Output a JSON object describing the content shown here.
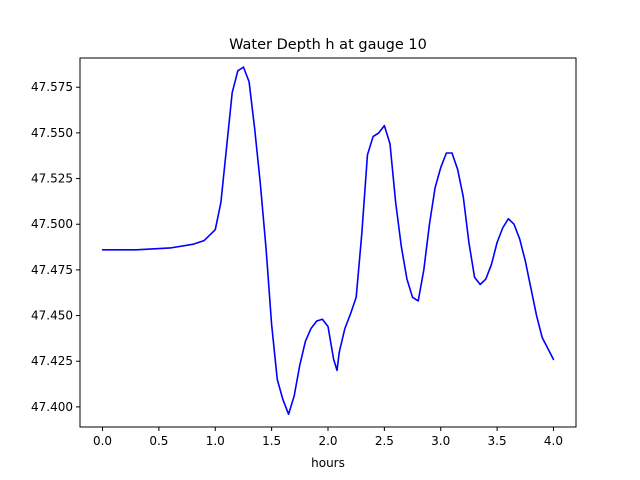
{
  "chart_data": {
    "type": "line",
    "title": "Water Depth h at gauge 10",
    "xlabel": "hours",
    "ylabel": "",
    "xlim": [
      -0.2,
      4.2
    ],
    "ylim": [
      47.389,
      47.591
    ],
    "grid": false,
    "legend": "none",
    "xticks": [
      {
        "value": 0.0,
        "label": "0.0"
      },
      {
        "value": 0.5,
        "label": "0.5"
      },
      {
        "value": 1.0,
        "label": "1.0"
      },
      {
        "value": 1.5,
        "label": "1.5"
      },
      {
        "value": 2.0,
        "label": "2.0"
      },
      {
        "value": 2.5,
        "label": "2.5"
      },
      {
        "value": 3.0,
        "label": "3.0"
      },
      {
        "value": 3.5,
        "label": "3.5"
      },
      {
        "value": 4.0,
        "label": "4.0"
      }
    ],
    "yticks": [
      {
        "value": 47.4,
        "label": "47.400"
      },
      {
        "value": 47.425,
        "label": "47.425"
      },
      {
        "value": 47.45,
        "label": "47.450"
      },
      {
        "value": 47.475,
        "label": "47.475"
      },
      {
        "value": 47.5,
        "label": "47.500"
      },
      {
        "value": 47.525,
        "label": "47.525"
      },
      {
        "value": 47.55,
        "label": "47.550"
      },
      {
        "value": 47.575,
        "label": "47.575"
      }
    ],
    "series": [
      {
        "color": "#0000ff",
        "x": [
          0.0,
          0.3,
          0.6,
          0.8,
          0.9,
          1.0,
          1.05,
          1.1,
          1.15,
          1.2,
          1.25,
          1.3,
          1.35,
          1.4,
          1.45,
          1.5,
          1.55,
          1.6,
          1.65,
          1.7,
          1.75,
          1.8,
          1.85,
          1.9,
          1.95,
          2.0,
          2.05,
          2.08,
          2.1,
          2.15,
          2.2,
          2.25,
          2.3,
          2.35,
          2.4,
          2.45,
          2.5,
          2.55,
          2.6,
          2.65,
          2.7,
          2.75,
          2.8,
          2.85,
          2.9,
          2.95,
          3.0,
          3.05,
          3.1,
          3.15,
          3.2,
          3.25,
          3.3,
          3.35,
          3.4,
          3.45,
          3.5,
          3.55,
          3.6,
          3.65,
          3.7,
          3.75,
          3.8,
          3.85,
          3.9,
          4.0
        ],
        "y": [
          47.486,
          47.486,
          47.487,
          47.489,
          47.491,
          47.497,
          47.512,
          47.542,
          47.572,
          47.584,
          47.586,
          47.578,
          47.552,
          47.522,
          47.487,
          47.445,
          47.415,
          47.404,
          47.396,
          47.406,
          47.423,
          47.436,
          47.443,
          47.447,
          47.448,
          47.444,
          47.426,
          47.42,
          47.43,
          47.443,
          47.451,
          47.46,
          47.495,
          47.538,
          47.548,
          47.55,
          47.554,
          47.544,
          47.512,
          47.488,
          47.47,
          47.46,
          47.458,
          47.475,
          47.5,
          47.52,
          47.531,
          47.539,
          47.539,
          47.53,
          47.515,
          47.49,
          47.471,
          47.467,
          47.47,
          47.478,
          47.49,
          47.498,
          47.503,
          47.5,
          47.492,
          47.48,
          47.465,
          47.45,
          47.438,
          47.426
        ]
      }
    ]
  }
}
